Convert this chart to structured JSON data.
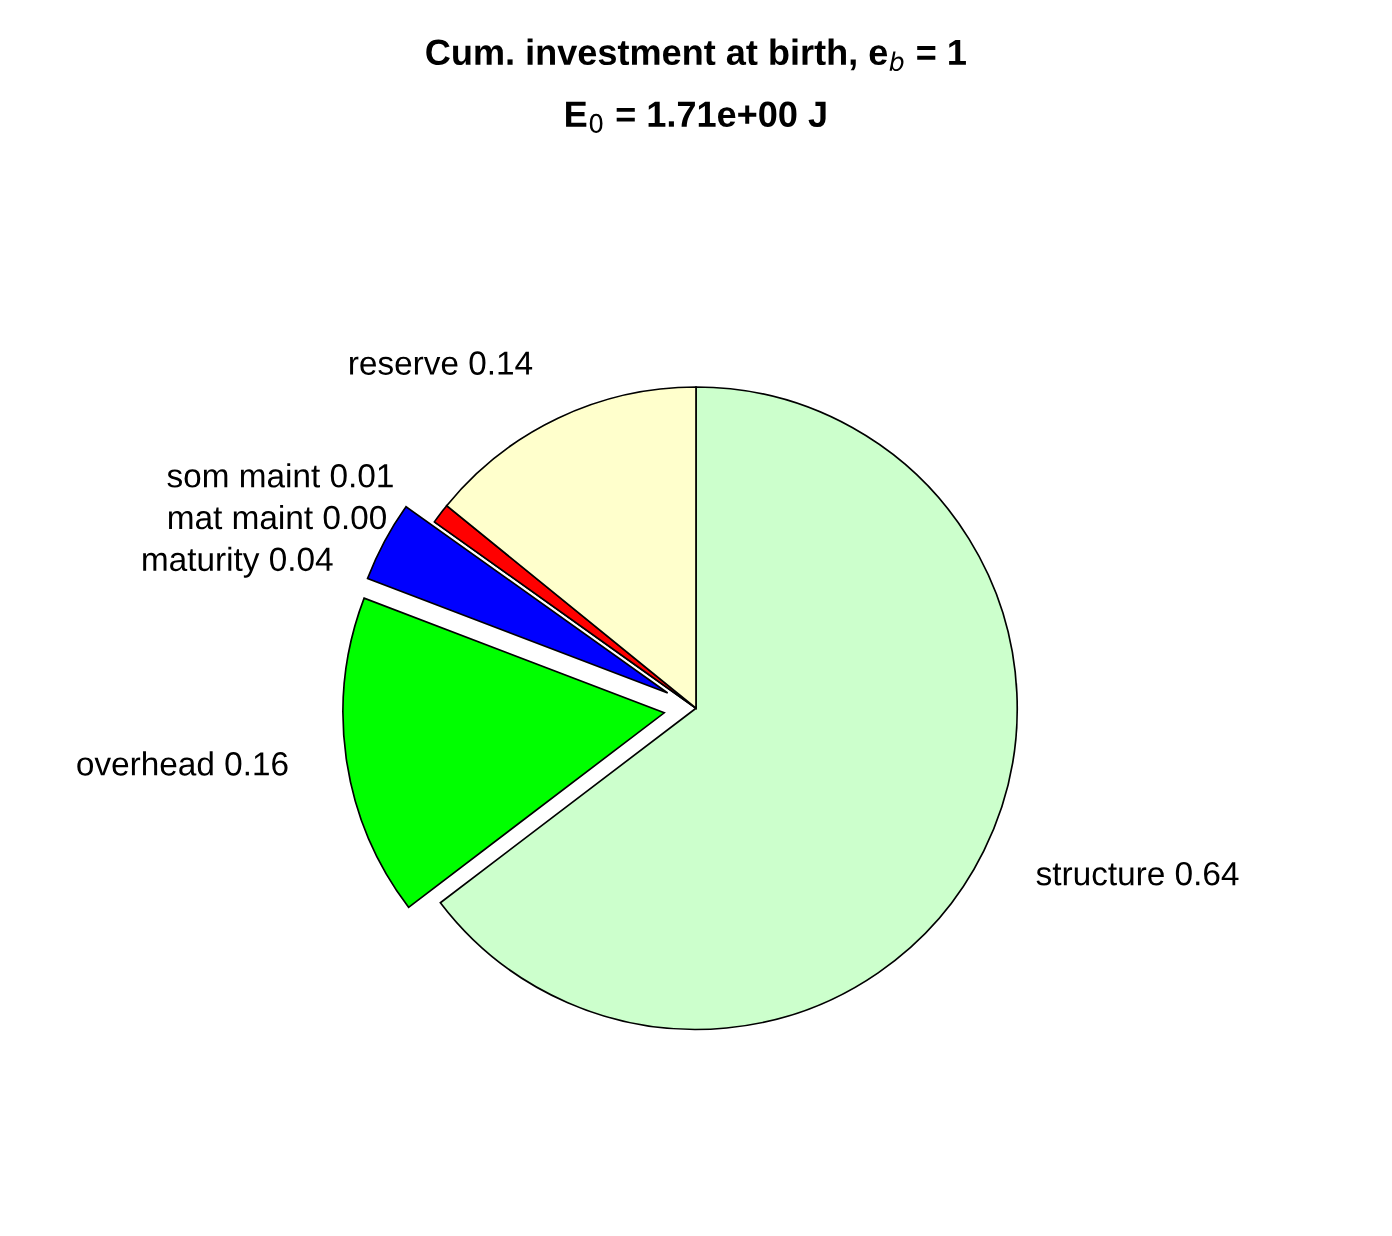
{
  "chart_data": {
    "type": "pie",
    "title": "Cum. investment at birth, e$_{b}$ = 1",
    "subtitle": "E$_{0}$ = 1.71e+00 J",
    "categories": [
      "structure 0.64",
      "overhead 0.16",
      "maturity 0.04",
      "mat maint 0.00",
      "som maint 0.01",
      "reserve 0.14"
    ],
    "values": [
      0.64,
      0.16,
      0.04,
      0.0,
      0.01,
      0.14
    ],
    "colors": [
      "#ccffcc",
      "#00ff00",
      "#0000ff",
      "#800000",
      "#ff0000",
      "#ffffcc"
    ],
    "legend": false
  }
}
